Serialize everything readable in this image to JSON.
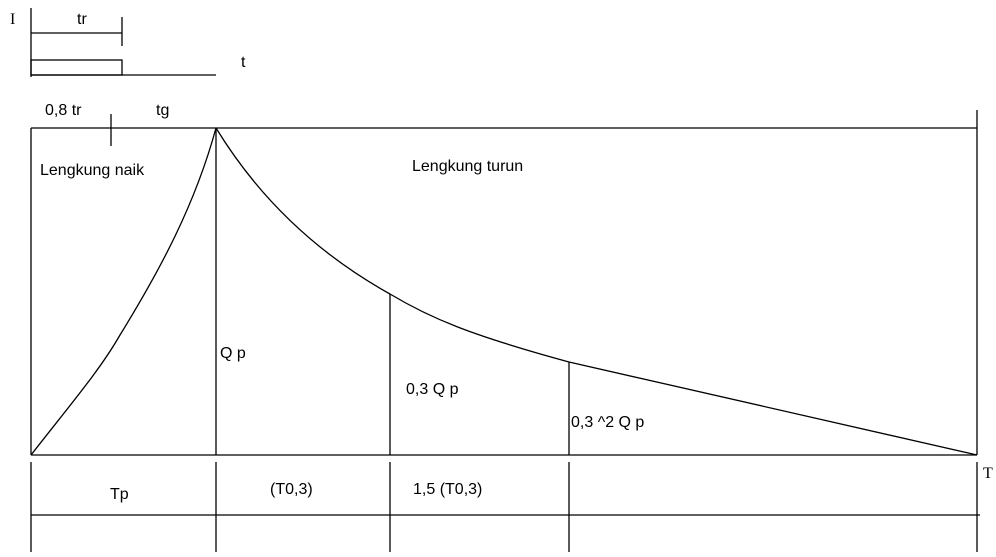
{
  "rain_block": {
    "intensity_label": "I",
    "duration_label": "tr",
    "time_label": "t"
  },
  "top_labels": {
    "delay_label": "0,8 tr",
    "lag_label": "tg"
  },
  "curves": {
    "rising_label": "Lengkung naik",
    "falling_label": "Lengkung turun"
  },
  "ordinates": {
    "peak_label": "Q p",
    "second_label": "0,3 Q p",
    "third_label": "0,3 ^2 Q p"
  },
  "time_axis": {
    "end_label": "T",
    "segment_1": "Tp",
    "segment_2": "(T0,3)",
    "segment_3": "1,5 (T0,3)"
  }
}
